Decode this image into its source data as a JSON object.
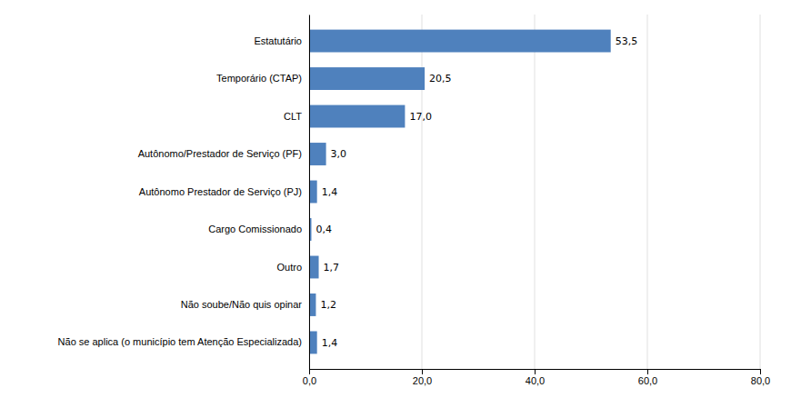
{
  "chart_data": {
    "type": "bar",
    "orientation": "horizontal",
    "categories": [
      "Não se aplica (o município tem Atenção Especializada)",
      "Não soube/Não quis opinar",
      "Outro",
      "Cargo Comissionado",
      "Autônomo Prestador de Serviço (PJ)",
      "Autônomo/Prestador de Serviço (PF)",
      "CLT",
      "Temporário (CTAP)",
      "Estatutário"
    ],
    "values": [
      1.4,
      1.2,
      1.7,
      0.4,
      1.4,
      3.0,
      17.0,
      20.5,
      53.5
    ],
    "value_labels": [
      "1,4",
      "1,2",
      "1,7",
      "0,4",
      "1,4",
      "3,0",
      "17,0",
      "20,5",
      "53,5"
    ],
    "data_labels": true,
    "color": "#4f81bd",
    "xlim": [
      0,
      80
    ],
    "xticks": [
      {
        "value": 0.0,
        "label": "0,0"
      },
      {
        "value": 20.0,
        "label": "20,0"
      },
      {
        "value": 40.0,
        "label": "40,0"
      },
      {
        "value": 60.0,
        "label": "60,0"
      },
      {
        "value": 80.0,
        "label": "80,0"
      }
    ],
    "grid": true
  }
}
